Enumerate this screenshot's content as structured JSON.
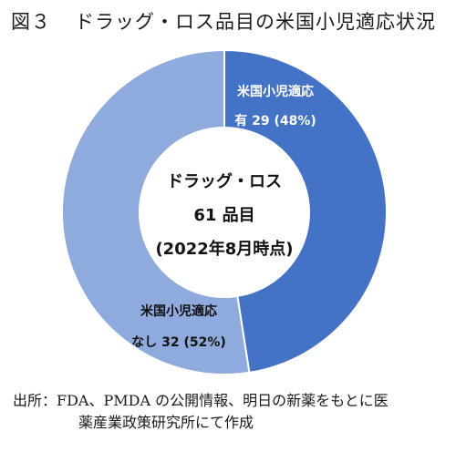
{
  "figure": {
    "title_prefix": "図３",
    "title": "ドラッグ・ロス品目の米国小児適応状況"
  },
  "chart_data": {
    "type": "pie",
    "style": "donut",
    "title": "ドラッグ・ロス品目の米国小児適応状況",
    "center_label": [
      "ドラッグ・ロス",
      "61 品目",
      "(2022年8月時点)"
    ],
    "total": 61,
    "slices": [
      {
        "label_line1": "米国小児適応",
        "label_line2": "有 29 (48%)",
        "value": 29,
        "percent": 48,
        "color": "#4472c4"
      },
      {
        "label_line1": "米国小児適応",
        "label_line2": "なし 32 (52%)",
        "value": 32,
        "percent": 52,
        "color": "#8faadc"
      }
    ]
  },
  "source": {
    "line1": "出所：FDA、PMDA の公開情報、明日の新薬をもとに医",
    "line2": "薬産業政策研究所にて作成"
  }
}
